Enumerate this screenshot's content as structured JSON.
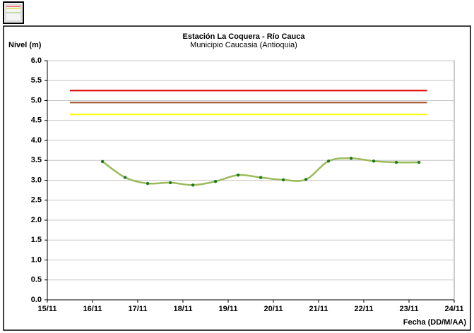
{
  "chart_data": {
    "type": "line",
    "title": "Estación La Coquera - Río Cauca",
    "subtitle": "Municipio Caucasia (Antioquia)",
    "y_label": "Nivel (m)",
    "x_label": "Fecha (DD/M/AA)",
    "x": [
      16.22,
      16.72,
      17.22,
      17.72,
      18.22,
      18.72,
      19.22,
      19.72,
      20.22,
      20.72,
      21.22,
      21.72,
      22.22,
      22.72,
      23.22
    ],
    "series": [
      {
        "color": "#9bbb59",
        "marker_color": "#1e7a1e",
        "values": [
          3.47,
          3.07,
          2.92,
          2.94,
          2.88,
          2.97,
          3.13,
          3.07,
          3.01,
          3.02,
          3.48,
          3.55,
          3.48,
          3.45,
          3.45
        ]
      }
    ],
    "reference_lines": [
      {
        "value": 5.25,
        "color": "#e00000"
      },
      {
        "value": 4.95,
        "color": "#a0522d"
      },
      {
        "value": 4.65,
        "color": "#ffff00"
      }
    ],
    "reference_xlim": [
      15.5,
      23.4
    ],
    "xlim": [
      15,
      24
    ],
    "xticks": [
      {
        "value": 15,
        "label": "15/11"
      },
      {
        "value": 16,
        "label": "16/11"
      },
      {
        "value": 17,
        "label": "17/11"
      },
      {
        "value": 18,
        "label": "18/11"
      },
      {
        "value": 19,
        "label": "19/11"
      },
      {
        "value": 20,
        "label": "20/11"
      },
      {
        "value": 21,
        "label": "21/11"
      },
      {
        "value": 22,
        "label": "22/11"
      },
      {
        "value": 23,
        "label": "23/11"
      },
      {
        "value": 24,
        "label": "24/11"
      }
    ],
    "ylim": [
      0,
      6
    ],
    "yticks": [
      {
        "value": 0,
        "label": "0.0"
      },
      {
        "value": 0.5,
        "label": "0.5"
      },
      {
        "value": 1,
        "label": "1.0"
      },
      {
        "value": 1.5,
        "label": "1.5"
      },
      {
        "value": 2,
        "label": "2.0"
      },
      {
        "value": 2.5,
        "label": "2.5"
      },
      {
        "value": 3,
        "label": "3.0"
      },
      {
        "value": 3.5,
        "label": "3.5"
      },
      {
        "value": 4,
        "label": "4.0"
      },
      {
        "value": 4.5,
        "label": "4.5"
      },
      {
        "value": 5,
        "label": "5.0"
      },
      {
        "value": 5.5,
        "label": "5.5"
      },
      {
        "value": 6,
        "label": "6.0"
      }
    ],
    "grid": true
  }
}
